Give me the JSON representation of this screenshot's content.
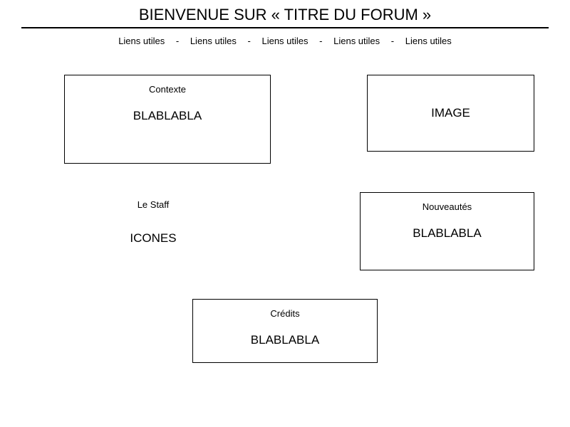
{
  "title": "BIENVENUE SUR « TITRE DU FORUM »",
  "nav": {
    "items": [
      "Liens utiles",
      "Liens utiles",
      "Liens utiles",
      "Liens utiles",
      "Liens utiles"
    ],
    "separator": "-"
  },
  "sections": {
    "contexte": {
      "title": "Contexte",
      "content": "BLABLABLA"
    },
    "image": {
      "content": "IMAGE"
    },
    "staff": {
      "title": "Le Staff",
      "content": "ICONES"
    },
    "nouveautes": {
      "title": "Nouveautés",
      "content": "BLABLABLA"
    },
    "credits": {
      "title": "Crédits",
      "content": "BLABLABLA"
    }
  },
  "colors": {
    "background": "#ffffff",
    "text": "#000000",
    "border": "#000000"
  }
}
